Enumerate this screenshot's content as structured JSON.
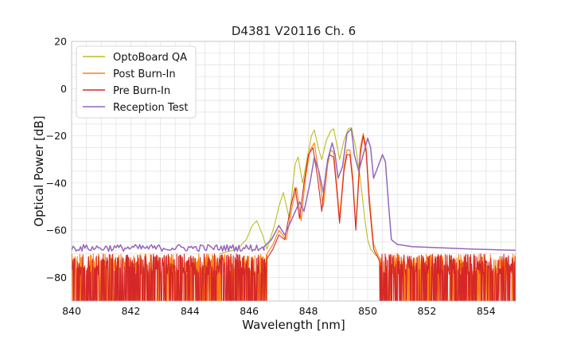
{
  "chart_data": {
    "type": "line",
    "title": "D4381 V20116 Ch. 6",
    "xlabel": "Wavelength [nm]",
    "ylabel": "Optical Power [dB]",
    "xlim": [
      840,
      855
    ],
    "ylim": [
      -90,
      20
    ],
    "xticks": [
      840,
      842,
      844,
      846,
      848,
      850,
      852,
      854
    ],
    "yticks": [
      20,
      0,
      -20,
      -40,
      -60,
      -80
    ],
    "ytick_labels": [
      "20",
      "0",
      "−20",
      "−40",
      "−60",
      "−80"
    ],
    "grid": true,
    "legend_position": "top-left",
    "series": [
      {
        "name": "OptoBoard QA",
        "color": "#bcbd22",
        "noise": [
          -90,
          -71
        ],
        "noise_region": [
          845.0,
          846.6
        ],
        "points": [
          [
            845.0,
            -70
          ],
          [
            845.3,
            -69
          ],
          [
            845.6,
            -68
          ],
          [
            845.9,
            -64
          ],
          [
            846.1,
            -58
          ],
          [
            846.25,
            -56
          ],
          [
            846.45,
            -62
          ],
          [
            846.6,
            -68
          ],
          [
            846.85,
            -58
          ],
          [
            847.0,
            -50
          ],
          [
            847.15,
            -44
          ],
          [
            847.35,
            -55
          ],
          [
            847.55,
            -32
          ],
          [
            847.65,
            -29
          ],
          [
            847.8,
            -40
          ],
          [
            847.95,
            -30
          ],
          [
            848.1,
            -20
          ],
          [
            848.2,
            -17.5
          ],
          [
            848.35,
            -26
          ],
          [
            848.45,
            -30
          ],
          [
            848.6,
            -22
          ],
          [
            848.75,
            -18
          ],
          [
            848.85,
            -17
          ],
          [
            848.95,
            -23
          ],
          [
            849.05,
            -30
          ],
          [
            849.2,
            -22
          ],
          [
            849.35,
            -17
          ],
          [
            849.45,
            -16.5
          ],
          [
            849.6,
            -25
          ],
          [
            849.75,
            -38
          ],
          [
            849.9,
            -55
          ],
          [
            850.0,
            -64
          ],
          [
            850.1,
            -68
          ],
          [
            850.3,
            -71
          ]
        ]
      },
      {
        "name": "Post Burn-In",
        "color": "#ff7f0e",
        "noise": [
          -90,
          -70
        ],
        "noise_region": [
          840.0,
          855.0
        ],
        "points": [
          [
            846.6,
            -70
          ],
          [
            846.8,
            -66
          ],
          [
            847.0,
            -60
          ],
          [
            847.25,
            -64
          ],
          [
            847.45,
            -50
          ],
          [
            847.6,
            -42
          ],
          [
            847.75,
            -56
          ],
          [
            847.9,
            -38
          ],
          [
            848.05,
            -26
          ],
          [
            848.2,
            -23
          ],
          [
            848.35,
            -36
          ],
          [
            848.5,
            -50
          ],
          [
            848.65,
            -32
          ],
          [
            848.75,
            -26
          ],
          [
            848.85,
            -27
          ],
          [
            848.95,
            -40
          ],
          [
            849.05,
            -55
          ],
          [
            849.2,
            -33
          ],
          [
            849.3,
            -26
          ],
          [
            849.4,
            -26
          ],
          [
            849.5,
            -38
          ],
          [
            849.6,
            -58
          ],
          [
            849.75,
            -25
          ],
          [
            849.85,
            -19
          ],
          [
            849.95,
            -25
          ],
          [
            850.05,
            -45
          ],
          [
            850.2,
            -66
          ],
          [
            850.4,
            -72
          ]
        ]
      },
      {
        "name": "Pre Burn-In",
        "color": "#d62728",
        "noise": [
          -90,
          -70
        ],
        "noise_region": [
          840.0,
          855.0
        ],
        "points": [
          [
            846.6,
            -72
          ],
          [
            846.8,
            -68
          ],
          [
            847.0,
            -62
          ],
          [
            847.2,
            -64
          ],
          [
            847.4,
            -50
          ],
          [
            847.55,
            -42
          ],
          [
            847.7,
            -55
          ],
          [
            847.85,
            -40
          ],
          [
            848.0,
            -28
          ],
          [
            848.15,
            -25
          ],
          [
            848.3,
            -37
          ],
          [
            848.45,
            -52
          ],
          [
            848.6,
            -34
          ],
          [
            848.7,
            -28
          ],
          [
            848.85,
            -29
          ],
          [
            848.95,
            -42
          ],
          [
            849.05,
            -57
          ],
          [
            849.2,
            -35
          ],
          [
            849.3,
            -28
          ],
          [
            849.4,
            -28
          ],
          [
            849.5,
            -40
          ],
          [
            849.6,
            -60
          ],
          [
            849.75,
            -28
          ],
          [
            849.85,
            -20
          ],
          [
            849.95,
            -27
          ],
          [
            850.05,
            -48
          ],
          [
            850.2,
            -68
          ],
          [
            850.4,
            -73
          ]
        ]
      },
      {
        "name": "Reception Test",
        "color": "#9467bd",
        "noise": [
          -69,
          -66
        ],
        "noise_region": [
          840.0,
          855.0
        ],
        "points": [
          [
            846.5,
            -67
          ],
          [
            846.75,
            -64
          ],
          [
            847.0,
            -58
          ],
          [
            847.2,
            -62
          ],
          [
            847.45,
            -55
          ],
          [
            847.7,
            -48
          ],
          [
            847.85,
            -52
          ],
          [
            848.05,
            -40
          ],
          [
            848.2,
            -29
          ],
          [
            848.35,
            -35
          ],
          [
            848.5,
            -44
          ],
          [
            848.65,
            -30
          ],
          [
            848.8,
            -23
          ],
          [
            848.9,
            -28
          ],
          [
            849.0,
            -38
          ],
          [
            849.15,
            -33
          ],
          [
            849.3,
            -19
          ],
          [
            849.45,
            -17
          ],
          [
            849.55,
            -28
          ],
          [
            849.7,
            -35
          ],
          [
            849.85,
            -28
          ],
          [
            850.0,
            -21
          ],
          [
            850.1,
            -25
          ],
          [
            850.2,
            -38
          ],
          [
            850.35,
            -33
          ],
          [
            850.5,
            -28
          ],
          [
            850.6,
            -31
          ],
          [
            850.7,
            -48
          ],
          [
            850.8,
            -64
          ],
          [
            851.0,
            -66
          ],
          [
            851.5,
            -67
          ],
          [
            852.5,
            -67.5
          ],
          [
            853.5,
            -68
          ],
          [
            855.0,
            -68.5
          ]
        ]
      }
    ]
  }
}
